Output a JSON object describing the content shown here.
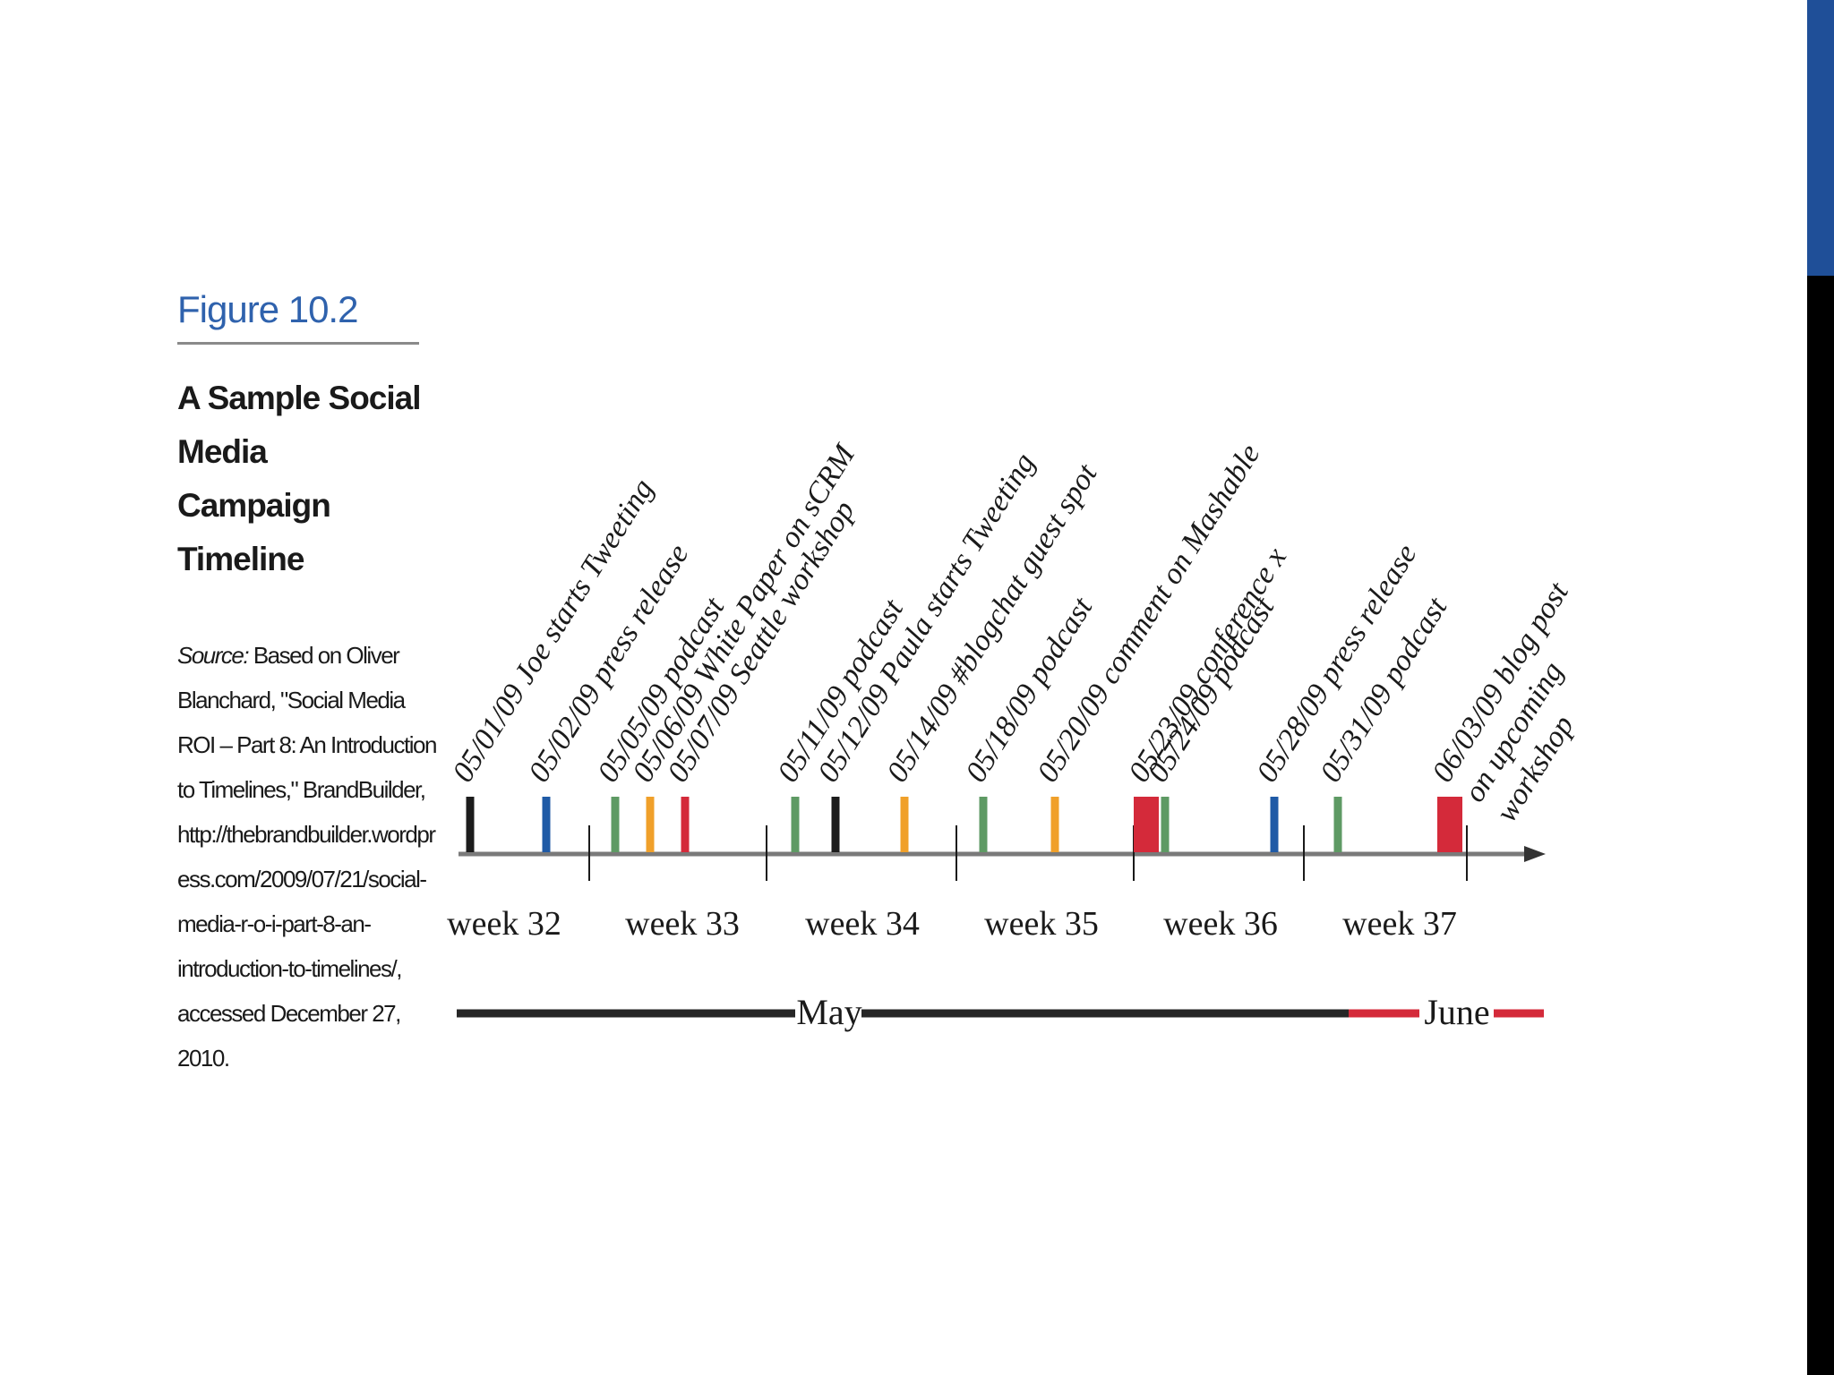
{
  "caption": {
    "figure_label": "Figure 10.2",
    "title": "A Sample Social Media Campaign Timeline",
    "source_label": "Source:",
    "source_text": "Based on Oliver Blanchard, \"Social Media ROI – Part 8: An Introduction to Timelines,\" BrandBuilder, http://thebrandbuilder.wordpress.com/2009/07/21/social-media-r-o-i-part-8-an-introduction-to-timelines/, accessed December 27, 2010."
  },
  "colors": {
    "black": "#1c1c1c",
    "blue": "#1f5aa6",
    "green": "#5e9a64",
    "orange": "#f0a02a",
    "red": "#d42a3a",
    "axis": "#7a7a7a",
    "accent_bar_blue": "#1f4f98"
  },
  "chart_data": {
    "type": "timeline",
    "events": [
      {
        "label": "05/01/09 Joe starts Tweeting",
        "color": "black",
        "size": "thin"
      },
      {
        "label": "05/02/09 press release",
        "color": "blue",
        "size": "thin"
      },
      {
        "label": "05/05/09 podcast",
        "color": "green",
        "size": "thin"
      },
      {
        "label": "05/06/09 White Paper on sCRM",
        "color": "orange",
        "size": "thin"
      },
      {
        "label": "05/07/09 Seattle workshop",
        "color": "red",
        "size": "thin"
      },
      {
        "label": "05/11/09 podcast",
        "color": "green",
        "size": "thin"
      },
      {
        "label": "05/12/09 Paula starts Tweeting",
        "color": "black",
        "size": "thin"
      },
      {
        "label": "05/14/09 #blogchat guest spot",
        "color": "orange",
        "size": "thin"
      },
      {
        "label": "05/18/09 podcast",
        "color": "green",
        "size": "thin"
      },
      {
        "label": "05/20/09 comment on Mashable",
        "color": "orange",
        "size": "thin"
      },
      {
        "label": "05/23/09 conference x",
        "color": "red",
        "size": "wide"
      },
      {
        "label": "05/24/09 podcast",
        "color": "green",
        "size": "thin"
      },
      {
        "label": "05/28/09 press release",
        "color": "blue",
        "size": "thin"
      },
      {
        "label": "05/31/09 podcast",
        "color": "green",
        "size": "thin"
      },
      {
        "label": "06/03/09 blog post on upcoming workshop",
        "color": "red",
        "size": "wide",
        "lines": [
          "06/03/09 blog post",
          "on upcoming",
          "workshop"
        ]
      }
    ],
    "weeks": [
      "week 32",
      "week 33",
      "week 34",
      "week 35",
      "week 36",
      "week 37"
    ],
    "months": [
      "May",
      "June"
    ]
  }
}
